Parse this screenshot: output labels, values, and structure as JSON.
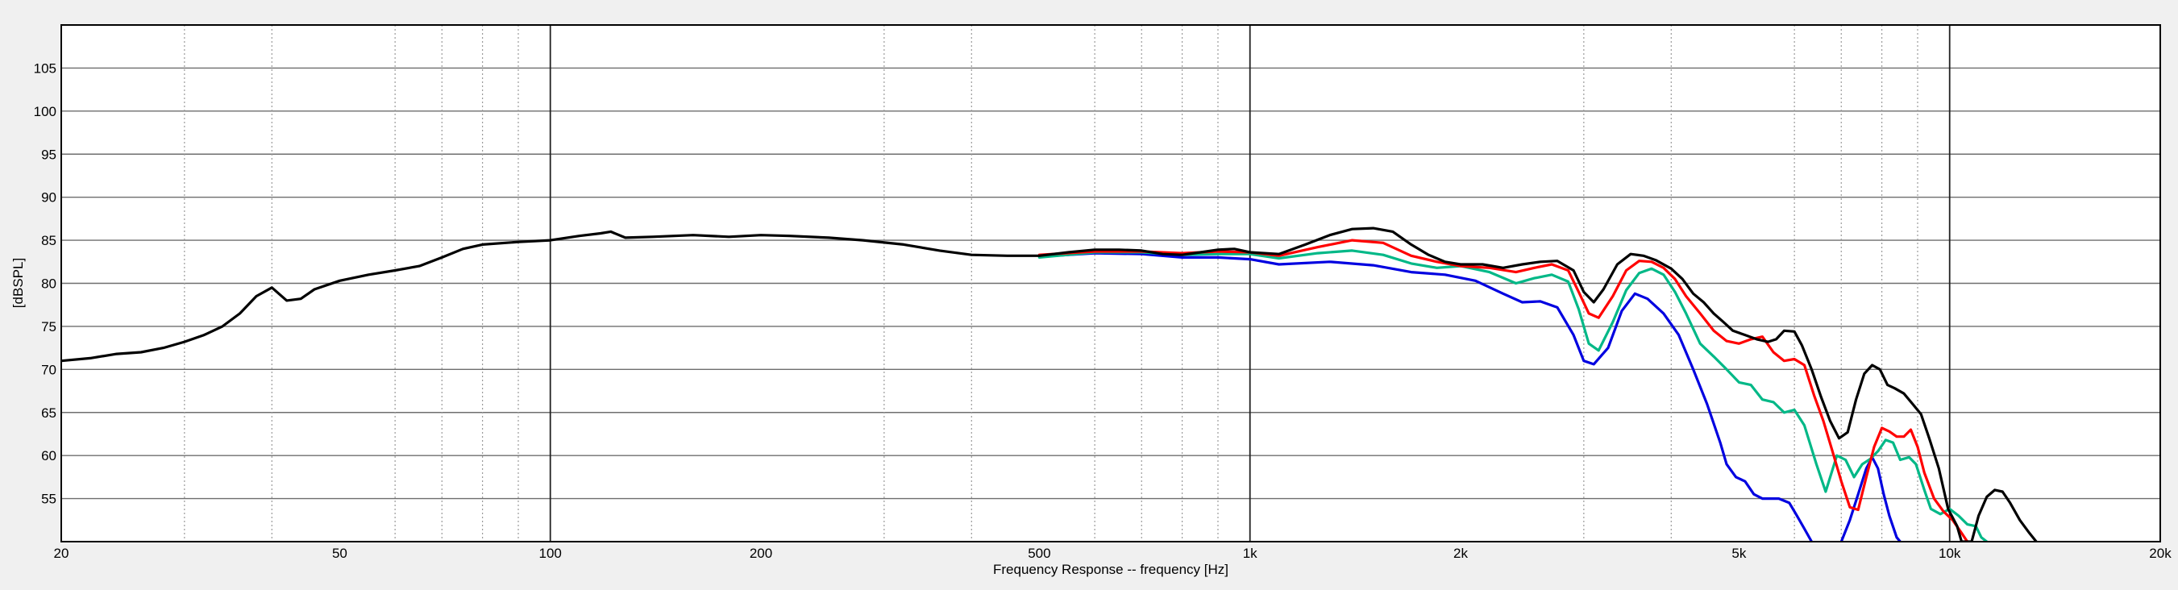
{
  "chart_data": {
    "type": "line",
    "title": "",
    "xlabel": "Frequency Response -- frequency [Hz]",
    "ylabel": "[dBSPL]",
    "x_scale": "log",
    "xlim": [
      20,
      20000
    ],
    "ylim": [
      50,
      110
    ],
    "x_ticks": [
      {
        "value": 20,
        "label": "20"
      },
      {
        "value": 50,
        "label": "50"
      },
      {
        "value": 100,
        "label": "100"
      },
      {
        "value": 200,
        "label": "200"
      },
      {
        "value": 500,
        "label": "500"
      },
      {
        "value": 1000,
        "label": "1k"
      },
      {
        "value": 2000,
        "label": "2k"
      },
      {
        "value": 5000,
        "label": "5k"
      },
      {
        "value": 10000,
        "label": "10k"
      },
      {
        "value": 20000,
        "label": "20k"
      }
    ],
    "y_ticks": [
      55,
      60,
      65,
      70,
      75,
      80,
      85,
      90,
      95,
      100,
      105
    ],
    "major_x_gridlines": [
      100,
      1000,
      10000
    ],
    "minor_x_gridlines": [
      30,
      40,
      60,
      70,
      80,
      90,
      300,
      400,
      600,
      700,
      800,
      900,
      3000,
      4000,
      6000,
      7000,
      8000,
      9000
    ],
    "grid": true,
    "legend": "none",
    "series": [
      {
        "color": "#0000e0",
        "points": [
          [
            500,
            83.1
          ],
          [
            600,
            83.5
          ],
          [
            700,
            83.4
          ],
          [
            800,
            83
          ],
          [
            900,
            83
          ],
          [
            1000,
            82.8
          ],
          [
            1100,
            82.2
          ],
          [
            1300,
            82.5
          ],
          [
            1500,
            82.1
          ],
          [
            1700,
            81.3
          ],
          [
            1900,
            81
          ],
          [
            2100,
            80.3
          ],
          [
            2300,
            78.8
          ],
          [
            2450,
            77.8
          ],
          [
            2600,
            77.9
          ],
          [
            2750,
            77.2
          ],
          [
            2900,
            74
          ],
          [
            3000,
            71
          ],
          [
            3100,
            70.6
          ],
          [
            3250,
            72.5
          ],
          [
            3400,
            76.8
          ],
          [
            3550,
            78.8
          ],
          [
            3700,
            78.2
          ],
          [
            3900,
            76.5
          ],
          [
            4100,
            74
          ],
          [
            4300,
            70
          ],
          [
            4500,
            66
          ],
          [
            4700,
            61.5
          ],
          [
            4800,
            59
          ],
          [
            4950,
            57.5
          ],
          [
            5100,
            57
          ],
          [
            5250,
            55.5
          ],
          [
            5400,
            55
          ],
          [
            5700,
            55
          ],
          [
            5900,
            54.5
          ],
          [
            6050,
            53
          ],
          [
            6200,
            51.5
          ],
          [
            6350,
            50
          ]
        ]
      },
      {
        "color": "#0000e0",
        "points": [
          [
            7000,
            50
          ],
          [
            7200,
            52.5
          ],
          [
            7400,
            55.5
          ],
          [
            7600,
            58.5
          ],
          [
            7750,
            59.8
          ],
          [
            7900,
            58.5
          ],
          [
            8050,
            55.5
          ],
          [
            8200,
            53
          ],
          [
            8400,
            50.5
          ],
          [
            8500,
            50
          ]
        ]
      },
      {
        "color": "#00b887",
        "points": [
          [
            500,
            83
          ],
          [
            600,
            83.6
          ],
          [
            700,
            83.6
          ],
          [
            800,
            83.3
          ],
          [
            900,
            83.4
          ],
          [
            1000,
            83.4
          ],
          [
            1100,
            82.9
          ],
          [
            1250,
            83.5
          ],
          [
            1400,
            83.8
          ],
          [
            1550,
            83.3
          ],
          [
            1700,
            82.3
          ],
          [
            1850,
            81.8
          ],
          [
            2000,
            82
          ],
          [
            2200,
            81.3
          ],
          [
            2400,
            80
          ],
          [
            2550,
            80.6
          ],
          [
            2700,
            81
          ],
          [
            2850,
            80.2
          ],
          [
            2950,
            77
          ],
          [
            3050,
            73
          ],
          [
            3150,
            72.2
          ],
          [
            3300,
            75.5
          ],
          [
            3450,
            79.2
          ],
          [
            3600,
            81.2
          ],
          [
            3750,
            81.7
          ],
          [
            3900,
            81
          ],
          [
            4050,
            79
          ],
          [
            4200,
            76.5
          ],
          [
            4400,
            73
          ],
          [
            4600,
            71.5
          ],
          [
            4800,
            70
          ],
          [
            5000,
            68.5
          ],
          [
            5200,
            68.2
          ],
          [
            5400,
            66.5
          ],
          [
            5600,
            66.2
          ],
          [
            5800,
            65
          ],
          [
            6000,
            65.3
          ],
          [
            6200,
            63.5
          ],
          [
            6450,
            59
          ],
          [
            6650,
            55.8
          ],
          [
            6900,
            60
          ],
          [
            7100,
            59.5
          ],
          [
            7300,
            57.5
          ],
          [
            7500,
            59
          ],
          [
            7700,
            59.6
          ],
          [
            7900,
            60.5
          ],
          [
            8100,
            61.8
          ],
          [
            8300,
            61.5
          ],
          [
            8500,
            59.5
          ],
          [
            8750,
            59.8
          ],
          [
            8950,
            59
          ],
          [
            9200,
            56
          ],
          [
            9400,
            53.8
          ],
          [
            9700,
            53.2
          ],
          [
            10000,
            53.8
          ],
          [
            10300,
            53
          ],
          [
            10600,
            52
          ],
          [
            10900,
            51.8
          ],
          [
            11100,
            50.5
          ],
          [
            11300,
            50
          ]
        ]
      },
      {
        "color": "#ff0000",
        "points": [
          [
            500,
            83.3
          ],
          [
            600,
            83.7
          ],
          [
            700,
            83.7
          ],
          [
            800,
            83.5
          ],
          [
            900,
            83.7
          ],
          [
            1000,
            83.6
          ],
          [
            1100,
            83.2
          ],
          [
            1250,
            84.2
          ],
          [
            1400,
            85
          ],
          [
            1550,
            84.7
          ],
          [
            1700,
            83.2
          ],
          [
            1850,
            82.5
          ],
          [
            2000,
            82
          ],
          [
            2200,
            81.8
          ],
          [
            2400,
            81.3
          ],
          [
            2550,
            81.8
          ],
          [
            2700,
            82.2
          ],
          [
            2850,
            81.5
          ],
          [
            2950,
            79
          ],
          [
            3050,
            76.5
          ],
          [
            3150,
            76
          ],
          [
            3300,
            78.5
          ],
          [
            3450,
            81.5
          ],
          [
            3600,
            82.6
          ],
          [
            3750,
            82.5
          ],
          [
            3900,
            81.8
          ],
          [
            4050,
            80.5
          ],
          [
            4200,
            78.5
          ],
          [
            4400,
            76.5
          ],
          [
            4600,
            74.5
          ],
          [
            4800,
            73.3
          ],
          [
            5000,
            73
          ],
          [
            5200,
            73.5
          ],
          [
            5400,
            73.8
          ],
          [
            5600,
            72
          ],
          [
            5800,
            71
          ],
          [
            6000,
            71.2
          ],
          [
            6200,
            70.5
          ],
          [
            6400,
            67
          ],
          [
            6600,
            64
          ],
          [
            6800,
            60.5
          ],
          [
            7000,
            57
          ],
          [
            7200,
            54
          ],
          [
            7400,
            53.7
          ],
          [
            7600,
            57.5
          ],
          [
            7800,
            61
          ],
          [
            8000,
            63.2
          ],
          [
            8200,
            62.8
          ],
          [
            8400,
            62.2
          ],
          [
            8600,
            62.2
          ],
          [
            8800,
            63
          ],
          [
            9000,
            61
          ],
          [
            9200,
            58
          ],
          [
            9500,
            55
          ],
          [
            9800,
            53.5
          ],
          [
            10100,
            52.5
          ],
          [
            10400,
            51
          ],
          [
            10600,
            50
          ]
        ]
      },
      {
        "color": "#000000",
        "points": [
          [
            20,
            71
          ],
          [
            22,
            71.3
          ],
          [
            24,
            71.8
          ],
          [
            26,
            72
          ],
          [
            28,
            72.5
          ],
          [
            30,
            73.2
          ],
          [
            32,
            74
          ],
          [
            34,
            75
          ],
          [
            36,
            76.5
          ],
          [
            38,
            78.5
          ],
          [
            40,
            79.5
          ],
          [
            42,
            78
          ],
          [
            44,
            78.2
          ],
          [
            46,
            79.3
          ],
          [
            50,
            80.3
          ],
          [
            55,
            81
          ],
          [
            60,
            81.5
          ],
          [
            65,
            82
          ],
          [
            70,
            83
          ],
          [
            75,
            84
          ],
          [
            80,
            84.5
          ],
          [
            90,
            84.8
          ],
          [
            100,
            85
          ],
          [
            110,
            85.5
          ],
          [
            118,
            85.8
          ],
          [
            122,
            86
          ],
          [
            128,
            85.3
          ],
          [
            140,
            85.4
          ],
          [
            160,
            85.6
          ],
          [
            180,
            85.4
          ],
          [
            200,
            85.6
          ],
          [
            220,
            85.5
          ],
          [
            250,
            85.3
          ],
          [
            280,
            85
          ],
          [
            320,
            84.5
          ],
          [
            360,
            83.8
          ],
          [
            400,
            83.3
          ],
          [
            450,
            83.2
          ],
          [
            500,
            83.2
          ],
          [
            550,
            83.6
          ],
          [
            600,
            83.9
          ],
          [
            650,
            83.9
          ],
          [
            700,
            83.8
          ],
          [
            750,
            83.4
          ],
          [
            800,
            83.3
          ],
          [
            850,
            83.6
          ],
          [
            900,
            83.9
          ],
          [
            950,
            84
          ],
          [
            1000,
            83.6
          ],
          [
            1100,
            83.4
          ],
          [
            1200,
            84.5
          ],
          [
            1300,
            85.6
          ],
          [
            1400,
            86.3
          ],
          [
            1500,
            86.4
          ],
          [
            1600,
            86
          ],
          [
            1700,
            84.5
          ],
          [
            1800,
            83.3
          ],
          [
            1900,
            82.5
          ],
          [
            2000,
            82.2
          ],
          [
            2150,
            82.2
          ],
          [
            2300,
            81.8
          ],
          [
            2450,
            82.2
          ],
          [
            2600,
            82.5
          ],
          [
            2750,
            82.6
          ],
          [
            2900,
            81.5
          ],
          [
            3000,
            79
          ],
          [
            3100,
            77.8
          ],
          [
            3200,
            79.3
          ],
          [
            3350,
            82.2
          ],
          [
            3500,
            83.4
          ],
          [
            3650,
            83.2
          ],
          [
            3800,
            82.7
          ],
          [
            4000,
            81.7
          ],
          [
            4150,
            80.5
          ],
          [
            4300,
            78.8
          ],
          [
            4450,
            77.8
          ],
          [
            4600,
            76.5
          ],
          [
            4750,
            75.5
          ],
          [
            4900,
            74.5
          ],
          [
            5100,
            74
          ],
          [
            5300,
            73.5
          ],
          [
            5500,
            73.2
          ],
          [
            5650,
            73.5
          ],
          [
            5800,
            74.5
          ],
          [
            6000,
            74.4
          ],
          [
            6150,
            72.8
          ],
          [
            6350,
            70
          ],
          [
            6550,
            66.8
          ],
          [
            6750,
            64
          ],
          [
            6950,
            62
          ],
          [
            7150,
            62.7
          ],
          [
            7350,
            66.5
          ],
          [
            7550,
            69.5
          ],
          [
            7750,
            70.5
          ],
          [
            7950,
            70
          ],
          [
            8150,
            68.2
          ],
          [
            8350,
            67.8
          ],
          [
            8600,
            67.2
          ],
          [
            8850,
            66
          ],
          [
            9100,
            64.8
          ],
          [
            9350,
            62
          ],
          [
            9650,
            58.5
          ],
          [
            9950,
            53.8
          ],
          [
            10250,
            51.8
          ],
          [
            10400,
            50
          ],
          [
            10750,
            50
          ],
          [
            11000,
            53
          ],
          [
            11300,
            55.2
          ],
          [
            11600,
            56
          ],
          [
            11900,
            55.8
          ],
          [
            12200,
            54.5
          ],
          [
            12600,
            52.5
          ],
          [
            13000,
            51
          ],
          [
            13300,
            50
          ]
        ]
      }
    ]
  }
}
